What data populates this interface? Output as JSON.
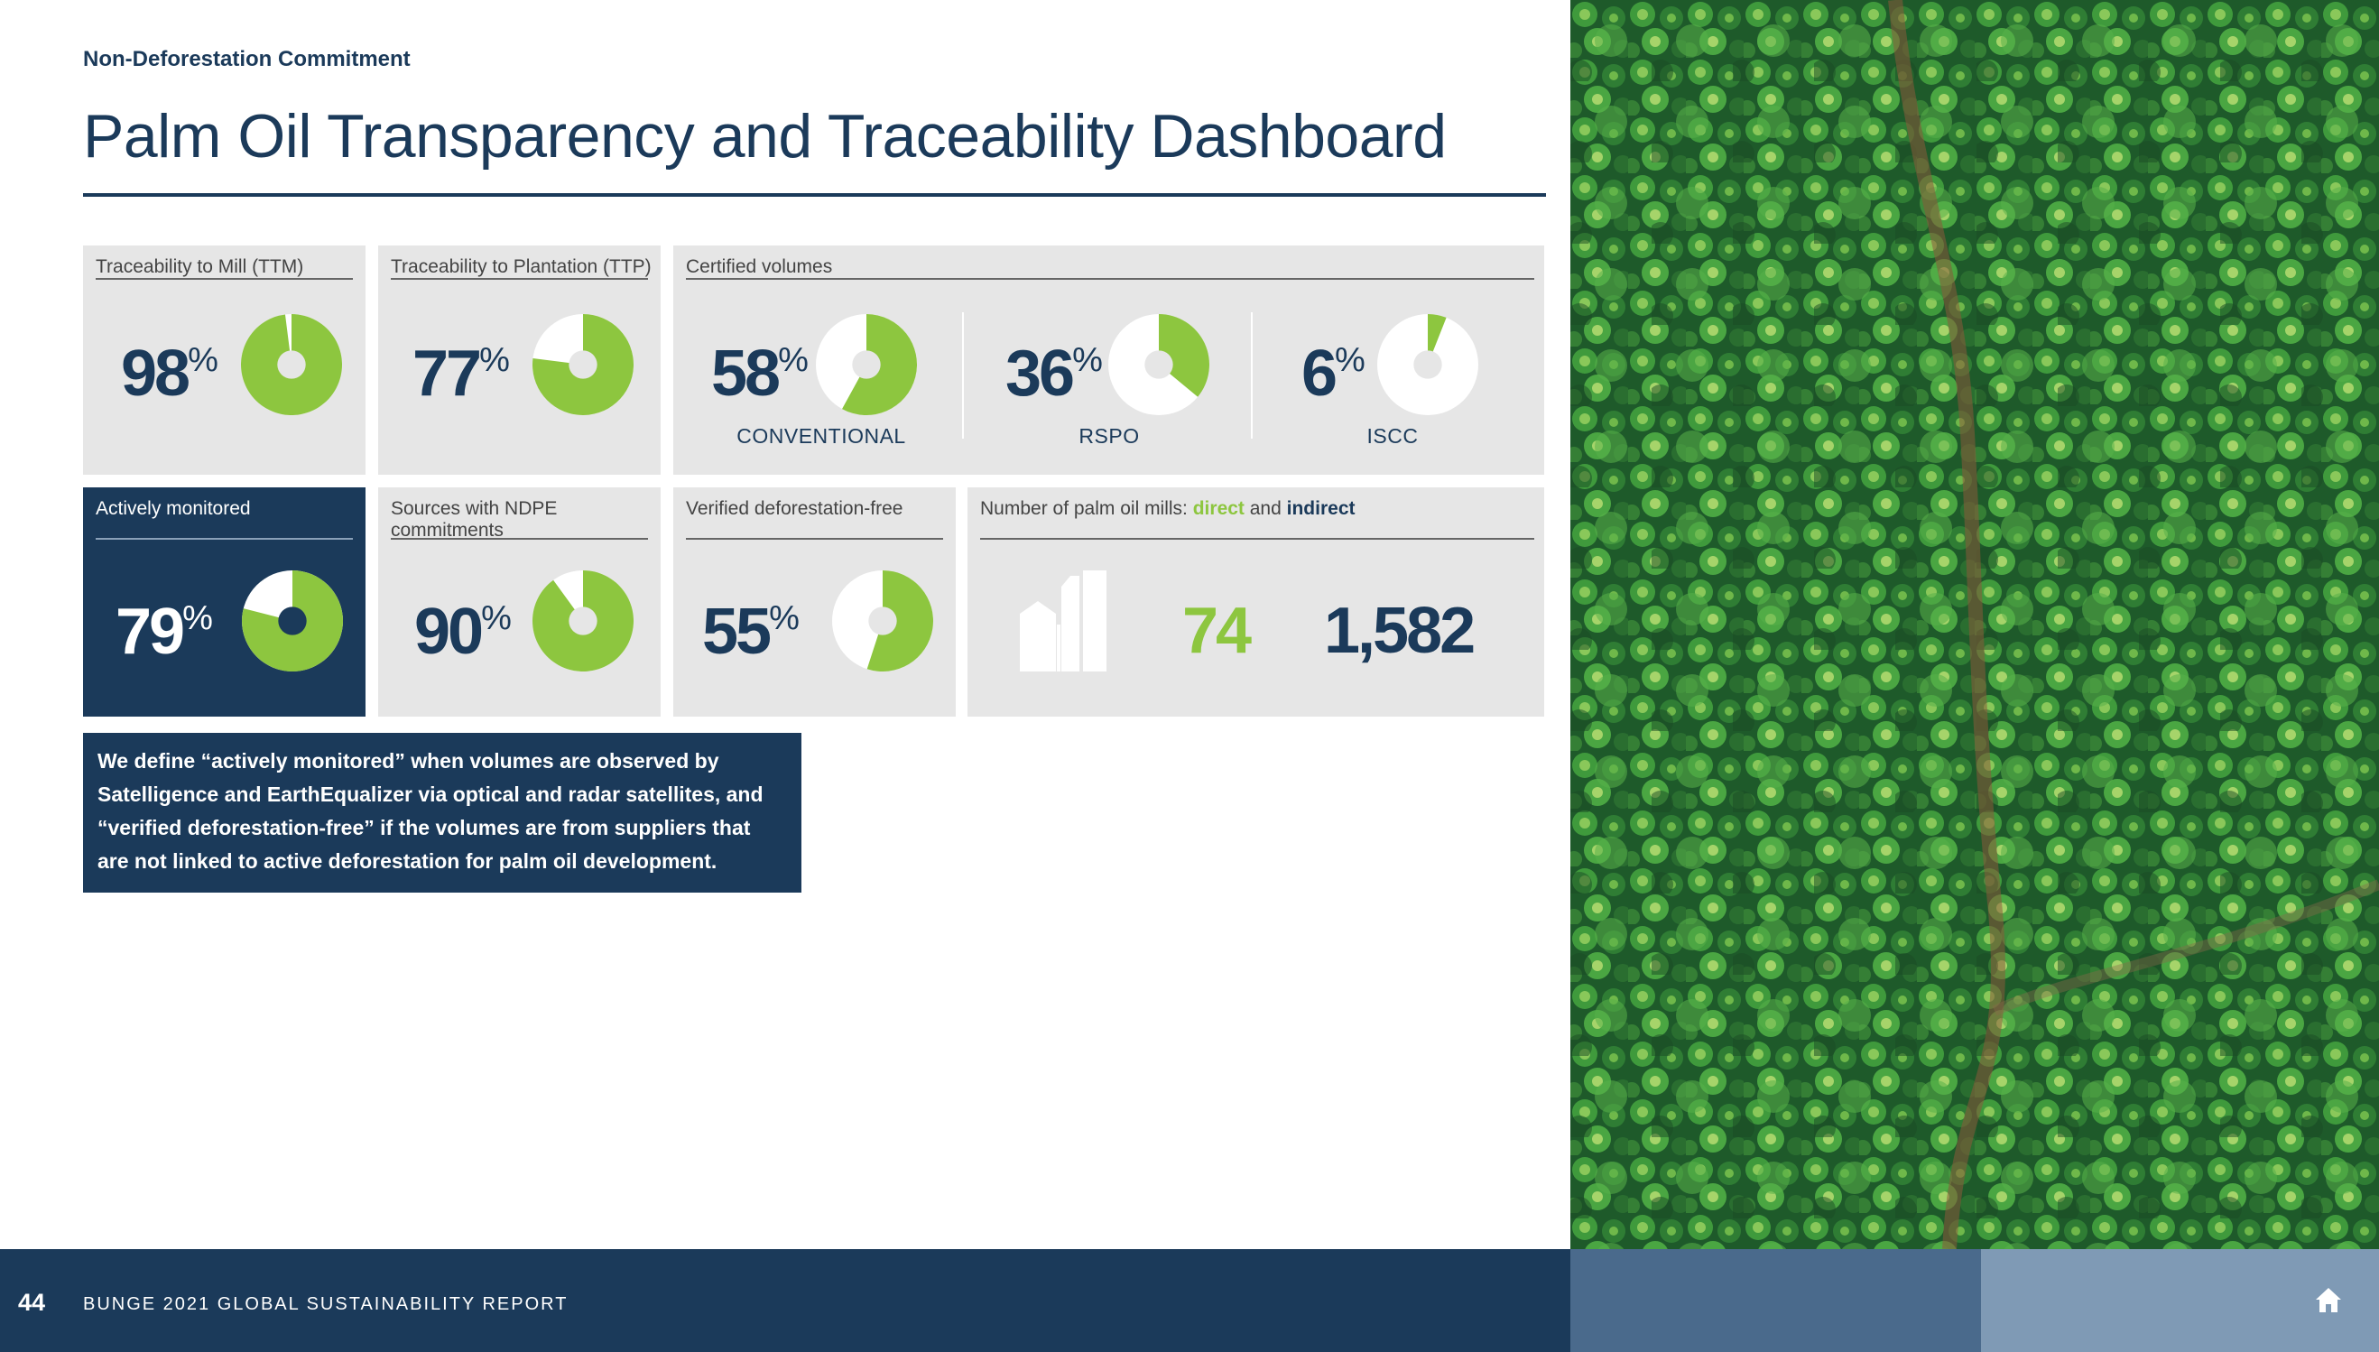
{
  "header": {
    "section": "Non-Deforestation Commitment",
    "title": "Palm Oil Transparency and Traceability Dashboard"
  },
  "colors": {
    "navy": "#1b3a5a",
    "green": "#8dc63f",
    "card": "#e6e6e6"
  },
  "cards": {
    "ttm": {
      "label": "Traceability to Mill (TTM)",
      "value": "98",
      "unit": "%",
      "fraction": 0.98
    },
    "ttp": {
      "label": "Traceability to Plantation (TTP)",
      "value": "77",
      "unit": "%",
      "fraction": 0.77
    },
    "certified": {
      "label": "Certified volumes",
      "items": [
        {
          "value": "58",
          "unit": "%",
          "fraction": 0.58,
          "sublabel": "CONVENTIONAL"
        },
        {
          "value": "36",
          "unit": "%",
          "fraction": 0.36,
          "sublabel": "RSPO"
        },
        {
          "value": "6",
          "unit": "%",
          "fraction": 0.06,
          "sublabel": "ISCC"
        }
      ]
    },
    "monitored": {
      "label": "Actively monitored",
      "value": "79",
      "unit": "%",
      "fraction": 0.79
    },
    "ndpe": {
      "label": "Sources with NDPE commitments",
      "value": "90",
      "unit": "%",
      "fraction": 0.9
    },
    "verified": {
      "label": "Verified deforestation-free",
      "value": "55",
      "unit": "%",
      "fraction": 0.55
    },
    "mills": {
      "label_prefix": "Number of palm oil mills: ",
      "label_direct": "direct",
      "label_and": " and ",
      "label_indirect": "indirect",
      "direct": "74",
      "indirect": "1,582",
      "icon": "factory-icon"
    }
  },
  "note": "We define “actively monitored” when volumes are observed by Satelligence and EarthEqualizer via optical and radar satellites, and “verified deforestation-free” if the volumes are from suppliers that are not linked to active deforestation for palm oil development.",
  "footer": {
    "page_number": "44",
    "report": "BUNGE 2021 GLOBAL SUSTAINABILITY REPORT",
    "home_icon": "home-icon"
  }
}
